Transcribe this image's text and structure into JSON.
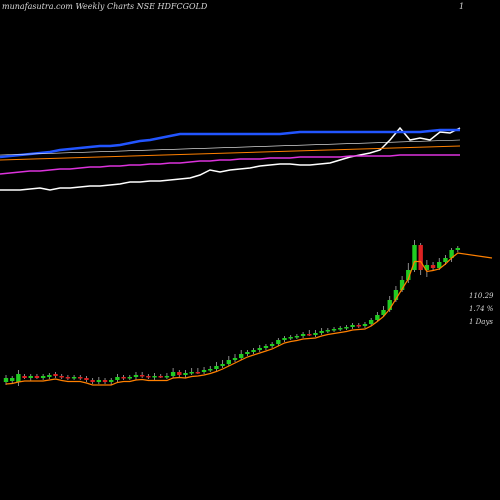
{
  "header": {
    "site": "munafasutra.com",
    "title": "Weekly Charts NSE HDFCGOLD",
    "corner_mark": "1"
  },
  "info": {
    "price": "110.29",
    "change": "1.74 %",
    "period": "1 Days"
  },
  "colors": {
    "background": "#000000",
    "up_candle": "#22cc22",
    "down_candle": "#dd2222",
    "ema_short": "#ff8000",
    "sma_blue": "#2255ff",
    "ema_long": "#ffffff",
    "magenta": "#dd33dd",
    "index_line": "#ffffff"
  },
  "chart_data": [
    {
      "type": "line",
      "title": "",
      "x": [
        0,
        10,
        20,
        30,
        40,
        50,
        60,
        70,
        80,
        90,
        100,
        110,
        120,
        130,
        140,
        150,
        160,
        170,
        180,
        190,
        200,
        210,
        220,
        230,
        240,
        250,
        260,
        270,
        280,
        290,
        300,
        310,
        320,
        330,
        340,
        350,
        360,
        370,
        380,
        390,
        400,
        410,
        420,
        430,
        440,
        450,
        460
      ],
      "series": [
        {
          "values": [
            190,
            190,
            190,
            189,
            188,
            190,
            188,
            188,
            187,
            186,
            186,
            185,
            184,
            182,
            182,
            181,
            181,
            180,
            179,
            178,
            175,
            170,
            172,
            170,
            169,
            168,
            166,
            165,
            164,
            164,
            165,
            165,
            164,
            163,
            160,
            157,
            155,
            153,
            150,
            140,
            128,
            140,
            138,
            140,
            132,
            133,
            128
          ]
        },
        {
          "values": [
            157,
            156,
            155,
            154,
            153,
            152,
            150,
            149,
            148,
            147,
            146,
            146,
            145,
            143,
            141,
            140,
            138,
            136,
            134,
            134,
            134,
            134,
            134,
            134,
            134,
            134,
            134,
            134,
            134,
            133,
            132,
            132,
            132,
            132,
            132,
            132,
            132,
            132,
            132,
            132,
            132,
            132,
            132,
            131,
            130,
            130,
            130
          ]
        },
        {
          "values": [
            174,
            173,
            172,
            171,
            171,
            170,
            169,
            169,
            168,
            167,
            167,
            166,
            166,
            165,
            165,
            164,
            164,
            163,
            163,
            162,
            161,
            161,
            160,
            160,
            159,
            159,
            159,
            158,
            158,
            158,
            157,
            157,
            157,
            157,
            157,
            156,
            156,
            156,
            156,
            156,
            155,
            155,
            155,
            155,
            155,
            155,
            155
          ]
        }
      ]
    },
    {
      "type": "bar",
      "title": "",
      "candles": [
        [
          382,
          378,
          385,
          375
        ],
        [
          381,
          378,
          384,
          376
        ],
        [
          382,
          374,
          386,
          370
        ],
        [
          376,
          378,
          379,
          374
        ],
        [
          378,
          376,
          381,
          374
        ],
        [
          376,
          378,
          379,
          374
        ],
        [
          378,
          376,
          380,
          374
        ],
        [
          377,
          375,
          379,
          373
        ],
        [
          374,
          376,
          378,
          372
        ],
        [
          376,
          377,
          379,
          374
        ],
        [
          377,
          378,
          380,
          375
        ],
        [
          378,
          377,
          380,
          375
        ],
        [
          377,
          378,
          380,
          375
        ],
        [
          378,
          380,
          382,
          376
        ],
        [
          380,
          382,
          384,
          378
        ],
        [
          382,
          380,
          384,
          377
        ],
        [
          380,
          382,
          384,
          378
        ],
        [
          382,
          380,
          385,
          378
        ],
        [
          380,
          377,
          382,
          374
        ],
        [
          377,
          378,
          380,
          375
        ],
        [
          378,
          377,
          380,
          375
        ],
        [
          377,
          375,
          380,
          372
        ],
        [
          375,
          376,
          378,
          372
        ],
        [
          376,
          377,
          379,
          374
        ],
        [
          377,
          376,
          380,
          373
        ],
        [
          376,
          377,
          378,
          374
        ],
        [
          377,
          376,
          379,
          373
        ],
        [
          376,
          372,
          378,
          368
        ],
        [
          372,
          375,
          377,
          370
        ],
        [
          375,
          373,
          378,
          370
        ],
        [
          373,
          372,
          375,
          368
        ],
        [
          372,
          372,
          374,
          368
        ],
        [
          372,
          370,
          374,
          367
        ],
        [
          370,
          369,
          372,
          366
        ],
        [
          369,
          366,
          371,
          362
        ],
        [
          366,
          364,
          368,
          360
        ],
        [
          364,
          360,
          366,
          356
        ],
        [
          360,
          358,
          362,
          354
        ],
        [
          358,
          354,
          360,
          350
        ],
        [
          354,
          352,
          356,
          350
        ],
        [
          352,
          350,
          354,
          348
        ],
        [
          350,
          348,
          352,
          345
        ],
        [
          348,
          346,
          350,
          344
        ],
        [
          346,
          344,
          348,
          342
        ],
        [
          344,
          340,
          346,
          338
        ],
        [
          340,
          338,
          342,
          336
        ],
        [
          338,
          337,
          340,
          335
        ],
        [
          337,
          336,
          339,
          334
        ],
        [
          336,
          334,
          338,
          332
        ],
        [
          334,
          335,
          336,
          330
        ],
        [
          335,
          333,
          337,
          330
        ],
        [
          333,
          331,
          335,
          328
        ],
        [
          331,
          330,
          333,
          328
        ],
        [
          330,
          329,
          332,
          327
        ],
        [
          329,
          328,
          331,
          326
        ],
        [
          328,
          327,
          330,
          325
        ],
        [
          327,
          325,
          329,
          323
        ],
        [
          325,
          326,
          328,
          323
        ],
        [
          326,
          324,
          328,
          322
        ],
        [
          324,
          320,
          326,
          318
        ],
        [
          320,
          315,
          322,
          312
        ],
        [
          315,
          310,
          317,
          306
        ],
        [
          310,
          300,
          312,
          296
        ],
        [
          300,
          290,
          302,
          286
        ],
        [
          290,
          280,
          292,
          276
        ],
        [
          280,
          270,
          283,
          263
        ],
        [
          270,
          245,
          272,
          240
        ],
        [
          245,
          270,
          275,
          243
        ],
        [
          270,
          265,
          277,
          260
        ],
        [
          265,
          268,
          270,
          262
        ],
        [
          268,
          262,
          270,
          258
        ],
        [
          262,
          258,
          265,
          255
        ],
        [
          258,
          250,
          262,
          248
        ],
        [
          250,
          248,
          252,
          246
        ]
      ]
    }
  ]
}
